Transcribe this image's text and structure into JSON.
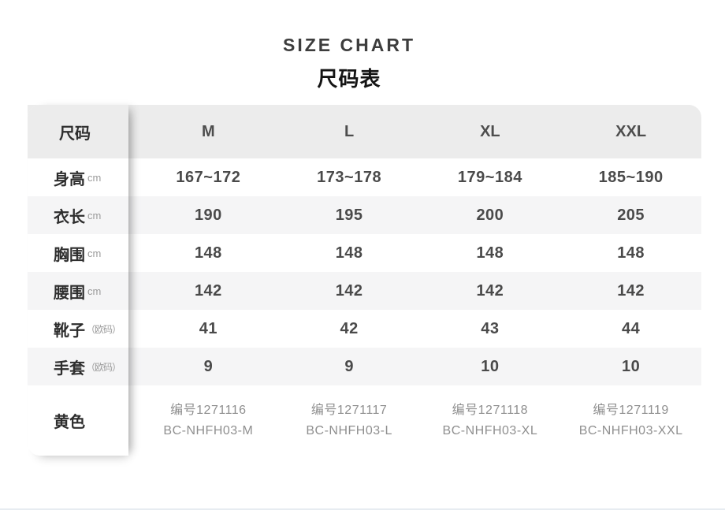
{
  "title": {
    "en": "SIZE CHART",
    "zh": "尺码表"
  },
  "table": {
    "header": {
      "label": "尺码",
      "columns": [
        "M",
        "L",
        "XL",
        "XXL"
      ]
    },
    "rows": [
      {
        "label": "身高",
        "unit": "cm",
        "values": [
          "167~172",
          "173~178",
          "179~184",
          "185~190"
        ]
      },
      {
        "label": "衣长",
        "unit": "cm",
        "values": [
          "190",
          "195",
          "200",
          "205"
        ]
      },
      {
        "label": "胸围",
        "unit": "cm",
        "values": [
          "148",
          "148",
          "148",
          "148"
        ]
      },
      {
        "label": "腰围",
        "unit": "cm",
        "values": [
          "142",
          "142",
          "142",
          "142"
        ]
      },
      {
        "label": "靴子",
        "unit": "（欧码）",
        "values": [
          "41",
          "42",
          "43",
          "44"
        ]
      },
      {
        "label": "手套",
        "unit": "（欧码）",
        "values": [
          "9",
          "9",
          "10",
          "10"
        ]
      }
    ],
    "sku_row": {
      "label": "黄色",
      "items": [
        {
          "code": "编号1271116",
          "model": "BC-NHFH03-M"
        },
        {
          "code": "编号1271117",
          "model": "BC-NHFH03-L"
        },
        {
          "code": "编号1271118",
          "model": "BC-NHFH03-XL"
        },
        {
          "code": "编号1271119",
          "model": "BC-NHFH03-XXL"
        }
      ]
    }
  },
  "colors": {
    "header_bg": "#ececec",
    "stripe_bg": "#f5f5f6",
    "label_text": "#2e2e2e",
    "value_text": "#4a4a4a",
    "sku_text": "#8f8f8f",
    "bottom_divider": "#e7ecf1"
  }
}
